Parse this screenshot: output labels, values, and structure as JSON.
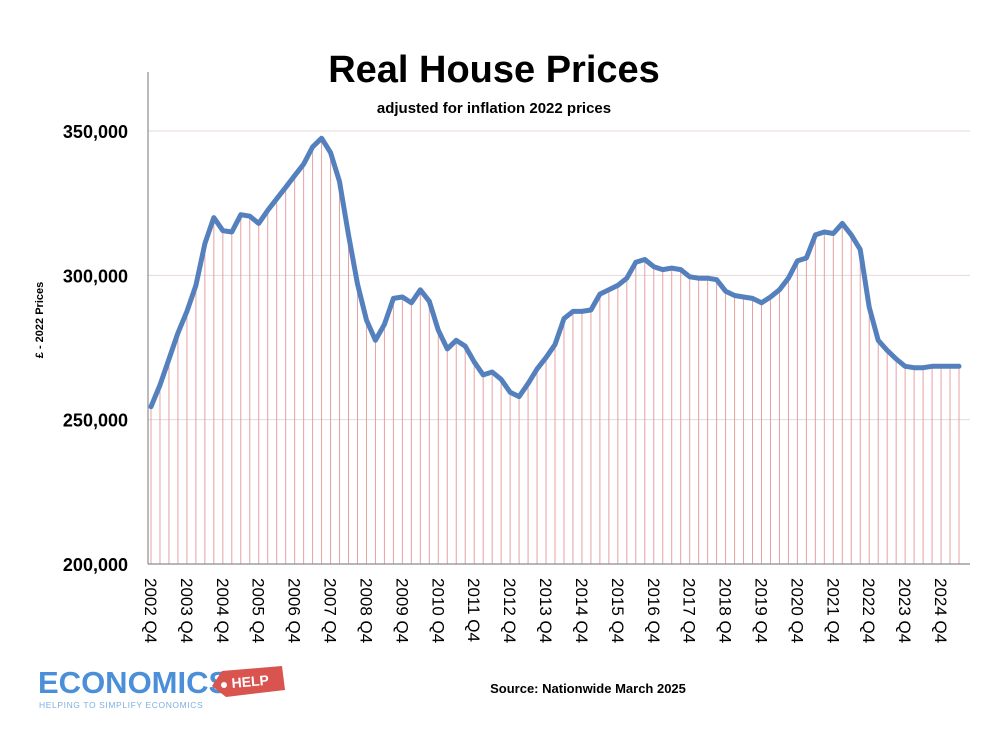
{
  "chart_data": {
    "type": "line",
    "title": "Real House Prices",
    "subtitle": "adjusted for inflation 2022 prices",
    "xlabel": "",
    "ylabel": "£ - 2022 Prices",
    "ylim": [
      200000,
      350000
    ],
    "y_ticks": [
      "200,000",
      "250,000",
      "300,000",
      "350,000"
    ],
    "x_tick_labels": [
      "2002 Q4",
      "2003 Q4",
      "2004 Q4",
      "2005 Q4",
      "2006 Q4",
      "2007 Q4",
      "2008 Q4",
      "2009 Q4",
      "2010 Q4",
      "2011 Q4",
      "2012 Q4",
      "2013 Q4",
      "2014 Q4",
      "2015 Q4",
      "2016 Q4",
      "2017 Q4",
      "2018 Q4",
      "2019 Q4",
      "2020 Q4",
      "2021 Q4",
      "2022 Q4",
      "2023 Q4",
      "2024 Q4"
    ],
    "grid": "horizontal",
    "drop_lines": true,
    "series": [
      {
        "color": "#5580be",
        "drop_line_color": "#e8a0a0",
        "values": [
          254500,
          262000,
          271000,
          280000,
          287500,
          296500,
          311000,
          320000,
          315500,
          315000,
          321000,
          320500,
          318000,
          322500,
          326500,
          330500,
          334500,
          338500,
          344500,
          347500,
          342500,
          332500,
          314000,
          297000,
          284500,
          277500,
          283000,
          292000,
          292500,
          290500,
          295000,
          291000,
          281000,
          274500,
          277500,
          275500,
          270000,
          265500,
          266500,
          264000,
          259500,
          258000,
          262500,
          267500,
          271500,
          276000,
          285000,
          287500,
          287500,
          288000,
          293500,
          295000,
          296500,
          299000,
          304500,
          305500,
          303000,
          302000,
          302500,
          302000,
          299500,
          299000,
          299000,
          298500,
          294500,
          293000,
          292500,
          292000,
          290500,
          292500,
          295000,
          299000,
          305000,
          306000,
          314000,
          315000,
          314500,
          318000,
          314000,
          309000,
          289000,
          277500,
          274000,
          271000,
          268500,
          268000,
          268000,
          268500,
          268500,
          268500,
          268500
        ]
      }
    ]
  },
  "footer": {
    "source": "Source: Nationwide March 2025"
  },
  "logo": {
    "main": "ECONOMICS",
    "tag": "HELP",
    "sub": "HELPING TO SIMPLIFY ECONOMICS",
    "color_main": "#4a8fd8",
    "color_tag": "#d9534f"
  }
}
